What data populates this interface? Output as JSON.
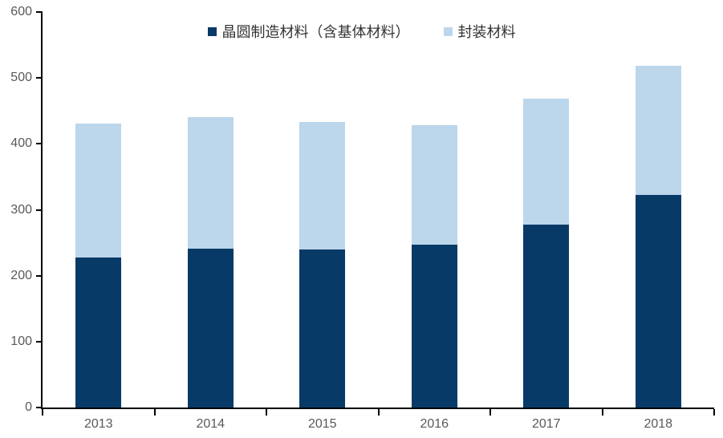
{
  "chart_data": {
    "type": "bar",
    "stacked": true,
    "title": "",
    "xlabel": "",
    "ylabel": "",
    "categories": [
      "2013",
      "2014",
      "2015",
      "2016",
      "2017",
      "2018"
    ],
    "series": [
      {
        "name": "晶圆制造材料（含基体材料）",
        "color": "#083a67",
        "values": [
          227,
          241,
          240,
          247,
          278,
          322
        ]
      },
      {
        "name": "封装材料",
        "color": "#bcd6ec",
        "values": [
          204,
          199,
          193,
          182,
          191,
          197
        ]
      }
    ],
    "totals": [
      431,
      440,
      433,
      429,
      469,
      519
    ],
    "ylim": [
      0,
      600
    ],
    "ytick_step": 100,
    "yticks": [
      "0",
      "100",
      "200",
      "300",
      "400",
      "500",
      "600"
    ],
    "grid": false,
    "legend_position": "top-center"
  },
  "colors": {
    "axis_line": "#000000",
    "tick_label": "#595959",
    "legend_text": "#333333",
    "background": "#ffffff"
  }
}
